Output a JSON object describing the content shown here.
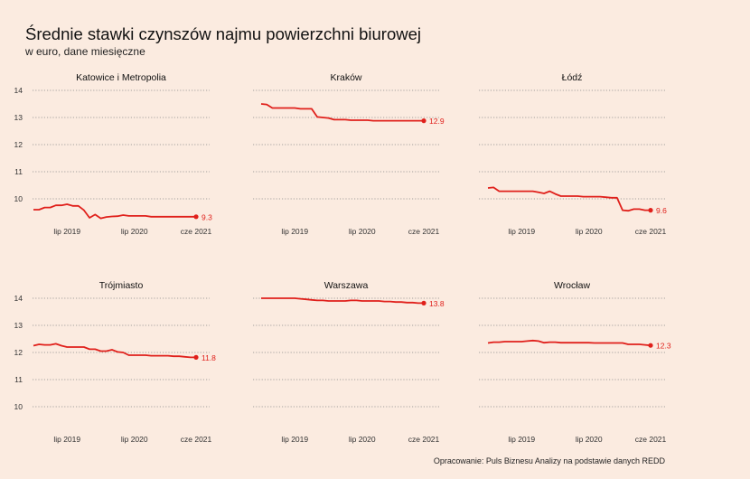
{
  "title": "Średnie stawki czynszów najmu powierzchni biurowej",
  "subtitle": "w euro, dane miesięczne",
  "source": "Opracowanie: Puls Biznesu Analizy na podstawie danych REDD",
  "colors": {
    "background": "#fbebe0",
    "line": "#e0201b",
    "grid": "#888888",
    "text": "#111111"
  },
  "chart_data": {
    "type": "line",
    "layout": "small-multiples",
    "x_ticks": [
      "lip 2019",
      "lip 2020",
      "cze 2021"
    ],
    "y_ticks": [
      10,
      11,
      12,
      13,
      14
    ],
    "ylim": [
      9.6,
      14.2
    ],
    "x": [
      "sty 2019",
      "lut 2019",
      "mar 2019",
      "kwi 2019",
      "maj 2019",
      "cze 2019",
      "lip 2019",
      "sie 2019",
      "wrz 2019",
      "paź 2019",
      "lis 2019",
      "gru 2019",
      "sty 2020",
      "lut 2020",
      "mar 2020",
      "kwi 2020",
      "maj 2020",
      "cze 2020",
      "lip 2020",
      "sie 2020",
      "wrz 2020",
      "paź 2020",
      "lis 2020",
      "gru 2020",
      "sty 2021",
      "lut 2021",
      "mar 2021",
      "kwi 2021",
      "maj 2021",
      "cze 2021"
    ],
    "grid": "horizontal dotted",
    "series": [
      {
        "name": "Katowice i Metropolia",
        "end_label": "9.3",
        "values": [
          9.6,
          9.6,
          9.68,
          9.68,
          9.76,
          9.76,
          9.8,
          9.74,
          9.74,
          9.58,
          9.3,
          9.42,
          9.28,
          9.33,
          9.35,
          9.36,
          9.4,
          9.37,
          9.37,
          9.37,
          9.37,
          9.34,
          9.34,
          9.34,
          9.34,
          9.34,
          9.34,
          9.34,
          9.34,
          9.34
        ]
      },
      {
        "name": "Kraków",
        "end_label": "12.9",
        "values": [
          13.5,
          13.48,
          13.35,
          13.35,
          13.35,
          13.35,
          13.35,
          13.32,
          13.32,
          13.32,
          13.02,
          13.0,
          12.98,
          12.92,
          12.92,
          12.92,
          12.9,
          12.9,
          12.9,
          12.9,
          12.88,
          12.88,
          12.88,
          12.88,
          12.88,
          12.88,
          12.88,
          12.88,
          12.88,
          12.88
        ]
      },
      {
        "name": "Łódź",
        "end_label": "9.6",
        "values": [
          10.4,
          10.42,
          10.28,
          10.28,
          10.28,
          10.28,
          10.28,
          10.28,
          10.28,
          10.24,
          10.2,
          10.28,
          10.18,
          10.1,
          10.1,
          10.1,
          10.1,
          10.08,
          10.08,
          10.08,
          10.08,
          10.06,
          10.04,
          10.04,
          9.58,
          9.56,
          9.62,
          9.62,
          9.58,
          9.58
        ]
      },
      {
        "name": "Trójmiasto",
        "end_label": "11.8",
        "values": [
          12.25,
          12.3,
          12.28,
          12.28,
          12.32,
          12.25,
          12.2,
          12.2,
          12.2,
          12.2,
          12.12,
          12.12,
          12.05,
          12.05,
          12.1,
          12.02,
          12.0,
          11.9,
          11.9,
          11.9,
          11.9,
          11.88,
          11.88,
          11.88,
          11.88,
          11.86,
          11.86,
          11.84,
          11.82,
          11.82
        ]
      },
      {
        "name": "Warszawa",
        "end_label": "13.8",
        "values": [
          14.0,
          14.0,
          14.0,
          14.0,
          14.0,
          14.0,
          14.0,
          13.98,
          13.96,
          13.94,
          13.92,
          13.92,
          13.9,
          13.9,
          13.9,
          13.9,
          13.92,
          13.92,
          13.9,
          13.9,
          13.9,
          13.9,
          13.88,
          13.88,
          13.86,
          13.86,
          13.84,
          13.84,
          13.82,
          13.82
        ]
      },
      {
        "name": "Wrocław",
        "end_label": "12.3",
        "values": [
          12.35,
          12.38,
          12.38,
          12.4,
          12.4,
          12.4,
          12.4,
          12.42,
          12.44,
          12.42,
          12.36,
          12.38,
          12.38,
          12.36,
          12.36,
          12.36,
          12.36,
          12.36,
          12.36,
          12.35,
          12.35,
          12.35,
          12.35,
          12.35,
          12.35,
          12.3,
          12.3,
          12.3,
          12.28,
          12.26
        ]
      }
    ]
  }
}
